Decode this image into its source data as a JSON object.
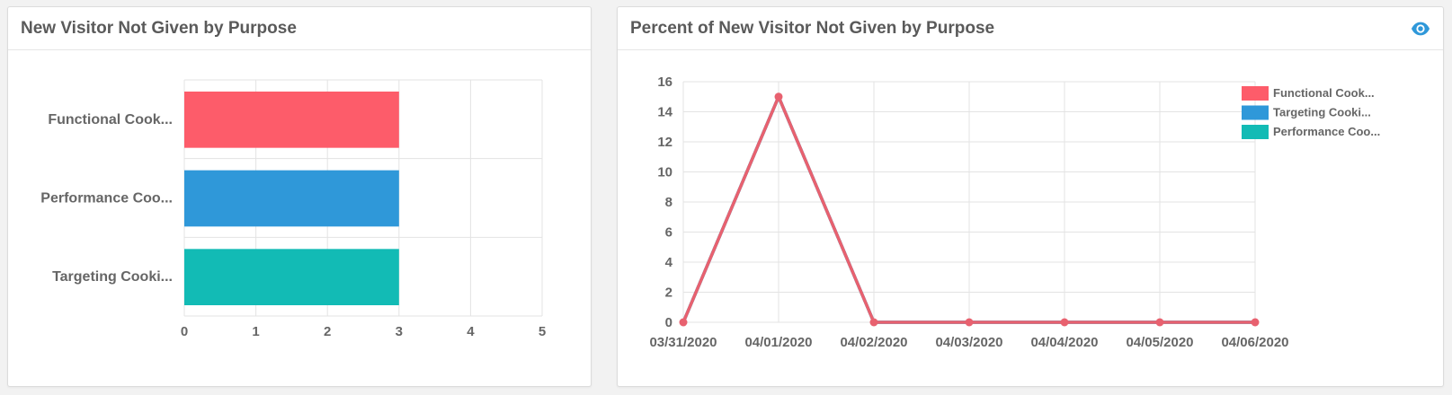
{
  "panels": {
    "left": {
      "title": "New Visitor Not Given by Purpose"
    },
    "right": {
      "title": "Percent of New Visitor Not Given by Purpose",
      "icon": "eye-icon"
    }
  },
  "chart_data": [
    {
      "type": "bar",
      "orientation": "horizontal",
      "title": "New Visitor Not Given by Purpose",
      "categories": [
        "Functional Cook...",
        "Performance Coo...",
        "Targeting Cooki..."
      ],
      "values": [
        3,
        3,
        3
      ],
      "colors": [
        "#fd5c6a",
        "#2f98d9",
        "#12bbb5"
      ],
      "xlim": [
        0,
        5
      ],
      "xticks": [
        0,
        1,
        2,
        3,
        4,
        5
      ],
      "grid": true
    },
    {
      "type": "line",
      "title": "Percent of New Visitor Not Given by Purpose",
      "x": [
        "03/31/2020",
        "04/01/2020",
        "04/02/2020",
        "04/03/2020",
        "04/04/2020",
        "04/05/2020",
        "04/06/2020"
      ],
      "series": [
        {
          "name": "Functional Cook...",
          "values": [
            0,
            15,
            0,
            0,
            0,
            0,
            0
          ],
          "color": "#e8616f"
        },
        {
          "name": "Targeting Cooki...",
          "values": [
            0,
            15,
            0,
            0,
            0,
            0,
            0
          ],
          "color": "#2f98d9"
        },
        {
          "name": "Performance Coo...",
          "values": [
            0,
            15,
            0,
            0,
            0,
            0,
            0
          ],
          "color": "#12bbb5"
        }
      ],
      "legend": [
        {
          "name": "Functional Cook...",
          "color": "#fd5c6a"
        },
        {
          "name": "Targeting Cooki...",
          "color": "#2f98d9"
        },
        {
          "name": "Performance Coo...",
          "color": "#12bbb5"
        }
      ],
      "legend_position": "top-right",
      "ylim": [
        0,
        16
      ],
      "yticks": [
        0,
        2,
        4,
        6,
        8,
        10,
        12,
        14,
        16
      ],
      "grid": true
    }
  ]
}
